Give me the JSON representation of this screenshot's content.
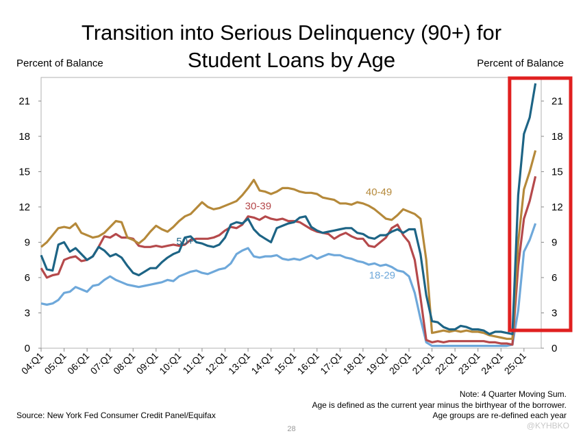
{
  "chart_data": {
    "type": "line",
    "title": "Transition into Serious Delinquency (90+) for Student Loans by Age",
    "ylabel_left": "Percent of Balance",
    "ylabel_right": "Percent of Balance",
    "ylim": [
      0,
      23
    ],
    "yticks": [
      0,
      3,
      6,
      9,
      12,
      15,
      18,
      21
    ],
    "xlim": [
      0,
      87
    ],
    "xticks": [
      "04:Q1",
      "05:Q1",
      "06:Q1",
      "07:Q1",
      "08:Q1",
      "09:Q1",
      "10:Q1",
      "11:Q1",
      "12:Q1",
      "13:Q1",
      "14:Q1",
      "15:Q1",
      "16:Q1",
      "17:Q1",
      "18:Q1",
      "19:Q1",
      "20:Q1",
      "21:Q1",
      "22:Q1",
      "23:Q1",
      "24:Q1",
      "25:Q1"
    ],
    "x_start": "2004:Q1",
    "x_end": "2025:Q4",
    "series": [
      {
        "name": "18-29",
        "color": "#6ea8da",
        "values": [
          3.8,
          3.7,
          3.8,
          4.1,
          4.7,
          4.8,
          5.2,
          5.0,
          4.8,
          5.3,
          5.4,
          5.8,
          6.1,
          5.8,
          5.6,
          5.4,
          5.3,
          5.2,
          5.3,
          5.4,
          5.5,
          5.6,
          5.8,
          5.7,
          6.1,
          6.3,
          6.5,
          6.6,
          6.4,
          6.3,
          6.5,
          6.7,
          6.8,
          7.2,
          8.0,
          8.3,
          8.5,
          7.8,
          7.7,
          7.8,
          7.8,
          7.9,
          7.6,
          7.5,
          7.6,
          7.5,
          7.7,
          7.9,
          7.6,
          7.8,
          8.0,
          7.9,
          7.9,
          7.7,
          7.6,
          7.4,
          7.3,
          7.1,
          7.2,
          7.0,
          7.1,
          6.9,
          6.6,
          6.5,
          6.1,
          4.7,
          2.5,
          0.5,
          0.2,
          0.2,
          0.2,
          0.2,
          0.2,
          0.2,
          0.2,
          0.2,
          0.2,
          0.2,
          0.2,
          0.2,
          0.2,
          0.2,
          0.3,
          3.2,
          8.2,
          9.2,
          10.6
        ]
      },
      {
        "name": "30-39",
        "color": "#b5494b",
        "values": [
          6.8,
          6.0,
          6.2,
          6.3,
          7.5,
          7.7,
          7.8,
          7.4,
          7.5,
          7.8,
          8.6,
          9.5,
          9.4,
          9.7,
          9.4,
          9.4,
          9.3,
          8.7,
          8.6,
          8.6,
          8.7,
          8.6,
          8.7,
          8.8,
          8.7,
          8.8,
          9.2,
          9.3,
          9.3,
          9.3,
          9.4,
          9.6,
          10.0,
          10.3,
          10.2,
          10.5,
          11.2,
          11.1,
          10.9,
          11.2,
          11.0,
          10.9,
          11.0,
          10.8,
          10.8,
          10.7,
          10.4,
          10.1,
          9.9,
          9.8,
          9.7,
          9.3,
          9.6,
          9.8,
          9.5,
          9.3,
          9.3,
          8.7,
          8.6,
          9.0,
          9.4,
          10.2,
          10.5,
          9.6,
          9.0,
          7.5,
          4.3,
          0.7,
          0.5,
          0.6,
          0.5,
          0.6,
          0.6,
          0.6,
          0.6,
          0.6,
          0.6,
          0.6,
          0.5,
          0.5,
          0.4,
          0.4,
          0.3,
          7.0,
          11.0,
          12.5,
          14.6
        ]
      },
      {
        "name": "40-49",
        "color": "#b5893a",
        "values": [
          8.6,
          9.0,
          9.6,
          10.2,
          10.3,
          10.2,
          10.6,
          9.8,
          9.6,
          9.4,
          9.5,
          9.8,
          10.3,
          10.8,
          10.7,
          9.4,
          9.2,
          8.9,
          9.3,
          9.9,
          10.4,
          10.1,
          9.9,
          10.3,
          10.8,
          11.2,
          11.4,
          11.9,
          12.4,
          12.0,
          11.8,
          11.9,
          12.1,
          12.3,
          12.5,
          13.0,
          13.6,
          14.3,
          13.4,
          13.3,
          13.1,
          13.3,
          13.6,
          13.6,
          13.5,
          13.3,
          13.2,
          13.2,
          13.1,
          12.8,
          12.7,
          12.6,
          12.3,
          12.3,
          12.2,
          12.4,
          12.3,
          12.1,
          11.8,
          11.4,
          11.0,
          10.9,
          11.3,
          11.8,
          11.6,
          11.4,
          11.0,
          7.5,
          1.3,
          1.4,
          1.5,
          1.4,
          1.5,
          1.4,
          1.5,
          1.4,
          1.4,
          1.3,
          1.1,
          1.0,
          0.9,
          0.8,
          0.8,
          9.0,
          13.5,
          15.0,
          16.8
        ]
      },
      {
        "name": "50+",
        "color": "#1d6485",
        "values": [
          7.9,
          6.7,
          6.6,
          8.8,
          9.0,
          8.2,
          8.5,
          8.0,
          7.5,
          7.8,
          8.6,
          8.3,
          7.8,
          8.0,
          7.7,
          7.0,
          6.4,
          6.2,
          6.5,
          6.8,
          6.8,
          7.3,
          7.7,
          8.0,
          8.2,
          9.4,
          9.5,
          9.0,
          8.9,
          8.7,
          8.6,
          8.8,
          9.4,
          10.5,
          10.7,
          10.6,
          11.0,
          10.1,
          9.6,
          9.3,
          9.0,
          10.2,
          10.4,
          10.6,
          10.7,
          11.1,
          11.2,
          10.3,
          10.0,
          9.8,
          9.9,
          10.0,
          10.1,
          10.2,
          10.2,
          9.8,
          9.7,
          9.4,
          9.3,
          9.6,
          9.6,
          9.9,
          10.1,
          9.8,
          10.1,
          10.1,
          8.0,
          4.5,
          2.3,
          2.2,
          1.8,
          1.6,
          1.6,
          1.9,
          1.8,
          1.6,
          1.6,
          1.5,
          1.2,
          1.4,
          1.4,
          1.3,
          1.2,
          13.0,
          18.2,
          19.6,
          22.5
        ]
      }
    ],
    "annotations": [
      {
        "text": "40-49",
        "series": "40-49"
      },
      {
        "text": "30-39",
        "series": "30-39"
      },
      {
        "text": "50+",
        "series": "50+"
      },
      {
        "text": "18-29",
        "series": "18-29"
      }
    ],
    "highlight_color": "#e02020"
  },
  "notes": {
    "line1": "Note: 4 Quarter Moving Sum.",
    "line2": "Age is defined as the current year minus the birthyear of the borrower.",
    "line3": "Age groups are re-defined each year"
  },
  "source": "Source: New York Fed Consumer Credit Panel/Equifax",
  "page_number": "28",
  "watermark": "@KYHBKO"
}
